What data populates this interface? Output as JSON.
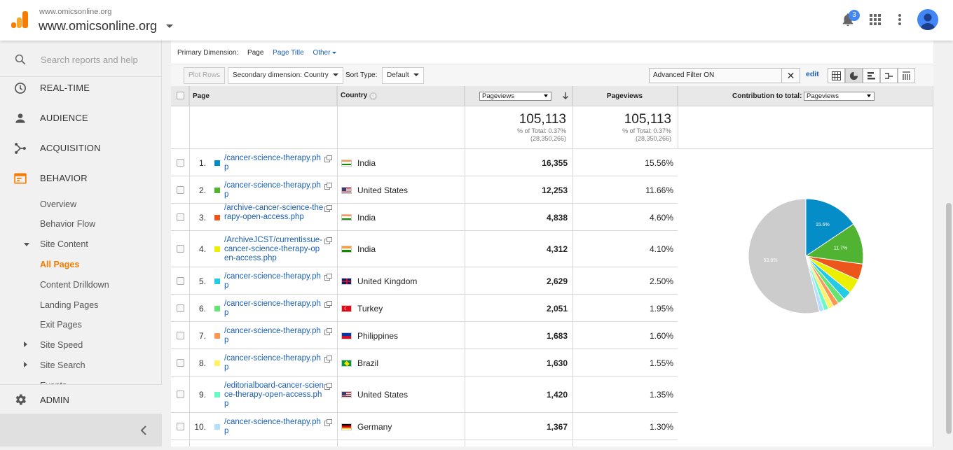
{
  "header": {
    "account_small": "www.omicsonline.org",
    "account_name": "www.omicsonline.org",
    "notification_count": "3"
  },
  "sidebar": {
    "search_placeholder": "Search reports and help",
    "sections": [
      "REAL-TIME",
      "AUDIENCE",
      "ACQUISITION",
      "BEHAVIOR"
    ],
    "behavior_items": [
      "Overview",
      "Behavior Flow",
      "Site Content",
      "All Pages",
      "Content Drilldown",
      "Landing Pages",
      "Exit Pages",
      "Site Speed",
      "Site Search",
      "Events"
    ],
    "admin": "ADMIN"
  },
  "report": {
    "primary_dimension_label": "Primary Dimension:",
    "primary_dimension_options": [
      "Page",
      "Page Title",
      "Other"
    ],
    "plot_rows": "Plot Rows",
    "secondary_dimension": "Secondary dimension: Country",
    "sort_type_label": "Sort Type:",
    "sort_type_value": "Default",
    "filter_text": "Advanced Filter ON",
    "edit": "edit",
    "col_page": "Page",
    "col_country": "Country",
    "metric_select": "Pageviews",
    "col_pageviews": "Pageviews",
    "contribution_label": "Contribution to total:",
    "contribution_select": "Pageviews",
    "totals": {
      "value": "105,113",
      "pct_line": "% of Total: 0.37%",
      "of_total": "(28,350,266)"
    },
    "rows": [
      {
        "n": "1.",
        "page": "/cancer-science-therapy.php",
        "country": "India",
        "pv": "16,355",
        "pct": "15.56%",
        "color": "#058dc7",
        "flag": "in"
      },
      {
        "n": "2.",
        "page": "/cancer-science-therapy.php",
        "country": "United States",
        "pv": "12,253",
        "pct": "11.66%",
        "color": "#50b432",
        "flag": "us"
      },
      {
        "n": "3.",
        "page": "/archive-cancer-science-therapy-open-access.php",
        "country": "India",
        "pv": "4,838",
        "pct": "4.60%",
        "color": "#ed561b",
        "flag": "in"
      },
      {
        "n": "4.",
        "page": "/ArchiveJCST/currentissue-cancer-science-therapy-open-access.php",
        "country": "India",
        "pv": "4,312",
        "pct": "4.10%",
        "color": "#edef00",
        "flag": "in"
      },
      {
        "n": "5.",
        "page": "/cancer-science-therapy.php",
        "country": "United Kingdom",
        "pv": "2,629",
        "pct": "2.50%",
        "color": "#24cbe5",
        "flag": "gb"
      },
      {
        "n": "6.",
        "page": "/cancer-science-therapy.php",
        "country": "Turkey",
        "pv": "2,051",
        "pct": "1.95%",
        "color": "#64e572",
        "flag": "tr"
      },
      {
        "n": "7.",
        "page": "/cancer-science-therapy.php",
        "country": "Philippines",
        "pv": "1,683",
        "pct": "1.60%",
        "color": "#ff9655",
        "flag": "ph"
      },
      {
        "n": "8.",
        "page": "/cancer-science-therapy.php",
        "country": "Brazil",
        "pv": "1,630",
        "pct": "1.55%",
        "color": "#fff263",
        "flag": "br"
      },
      {
        "n": "9.",
        "page": "/editorialboard-cancer-science-therapy-open-access.php",
        "country": "United States",
        "pv": "1,420",
        "pct": "1.35%",
        "color": "#6af9c4",
        "flag": "us"
      },
      {
        "n": "10.",
        "page": "/cancer-science-therapy.php",
        "country": "Germany",
        "pv": "1,367",
        "pct": "1.30%",
        "color": "#b2deff",
        "flag": "de"
      }
    ]
  },
  "chart_data": {
    "type": "pie",
    "categories": [
      "1",
      "2",
      "3",
      "4",
      "5",
      "6",
      "7",
      "8",
      "9",
      "10",
      "Other"
    ],
    "values": [
      15.56,
      11.66,
      4.6,
      4.1,
      2.5,
      1.95,
      1.6,
      1.55,
      1.35,
      1.3,
      53.83
    ],
    "colors": [
      "#058dc7",
      "#50b432",
      "#ed561b",
      "#edef00",
      "#24cbe5",
      "#64e572",
      "#ff9655",
      "#fff263",
      "#6af9c4",
      "#b2deff",
      "#cccccc"
    ],
    "slice_labels": [
      "15.6%",
      "11.7%",
      "",
      "",
      "",
      "",
      "",
      "",
      "",
      "",
      "53.8%"
    ]
  }
}
